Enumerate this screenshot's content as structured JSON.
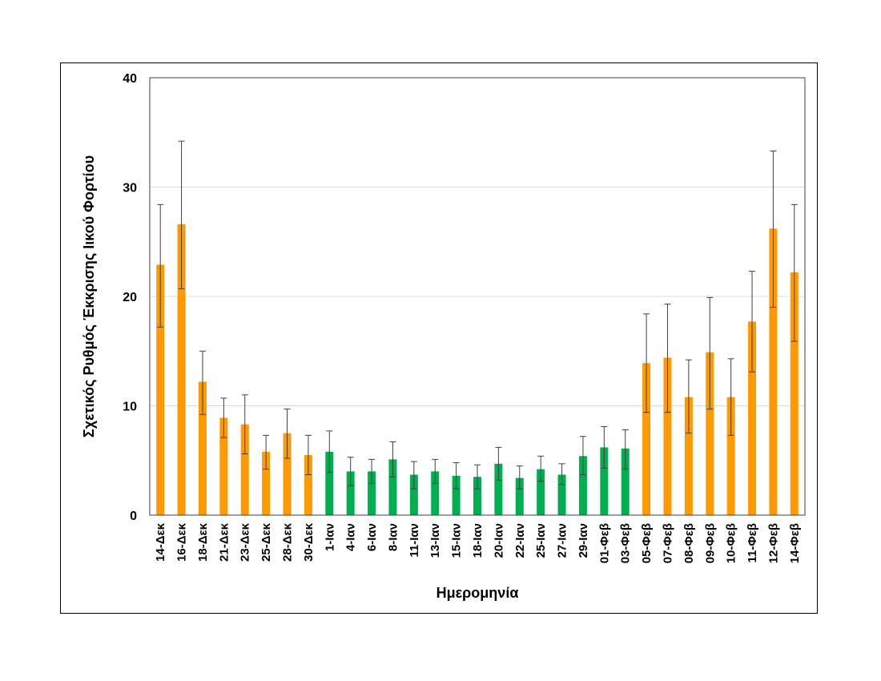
{
  "chart_data": {
    "type": "bar",
    "title": "",
    "xlabel": "Ημερομηνία",
    "ylabel": "Σχετικός Ρυθμός Έκκρισης Ιικού Φορτίου",
    "ylim": [
      0,
      40
    ],
    "yticks": [
      0,
      10,
      20,
      30,
      40
    ],
    "grid": true,
    "legend": "none",
    "colors": {
      "orange": "#FF9900",
      "green": "#00B050",
      "error": "#404040",
      "grid": "#d9d9d9"
    },
    "categories": [
      "14-Δεκ",
      "16-Δεκ",
      "18-Δεκ",
      "21-Δεκ",
      "23-Δεκ",
      "25-Δεκ",
      "28-Δεκ",
      "30-Δεκ",
      "1-Ιαν",
      "4-Ιαν",
      "6-Ιαν",
      "8-Ιαν",
      "11-Ιαν",
      "13-Ιαν",
      "15-Ιαν",
      "18-Ιαν",
      "20-Ιαν",
      "22-Ιαν",
      "25-Ιαν",
      "27-Ιαν",
      "29-Ιαν",
      "01-Φεβ",
      "03-Φεβ",
      "05-Φεβ",
      "07-Φεβ",
      "08-Φεβ",
      "09-Φεβ",
      "10-Φεβ",
      "11-Φεβ",
      "12-Φεβ",
      "14-Φεβ"
    ],
    "values": [
      22.9,
      26.6,
      12.2,
      8.9,
      8.3,
      5.8,
      7.5,
      5.5,
      5.8,
      4.0,
      4.0,
      5.1,
      3.7,
      4.0,
      3.6,
      3.5,
      4.7,
      3.4,
      4.2,
      3.7,
      5.4,
      6.2,
      6.1,
      13.9,
      14.4,
      10.8,
      14.9,
      10.8,
      17.7,
      26.2,
      22.2
    ],
    "error_upper": [
      28.4,
      34.2,
      15.0,
      10.7,
      11.0,
      7.3,
      9.7,
      7.3,
      7.7,
      5.3,
      5.1,
      6.7,
      4.9,
      5.1,
      4.8,
      4.6,
      6.2,
      4.5,
      5.4,
      4.7,
      7.2,
      8.1,
      7.8,
      18.4,
      19.3,
      14.2,
      19.9,
      14.3,
      22.3,
      33.3,
      28.4
    ],
    "error_lower": [
      17.2,
      20.7,
      9.2,
      7.1,
      5.6,
      4.2,
      5.2,
      3.7,
      3.9,
      2.7,
      2.9,
      3.5,
      2.4,
      2.9,
      2.4,
      2.4,
      3.2,
      2.4,
      3.1,
      2.8,
      3.7,
      4.3,
      4.2,
      9.4,
      9.4,
      7.5,
      9.7,
      7.3,
      13.1,
      19.0,
      15.9
    ],
    "bar_colors": [
      "orange",
      "orange",
      "orange",
      "orange",
      "orange",
      "orange",
      "orange",
      "orange",
      "green",
      "green",
      "green",
      "green",
      "green",
      "green",
      "green",
      "green",
      "green",
      "green",
      "green",
      "green",
      "green",
      "green",
      "green",
      "orange",
      "orange",
      "orange",
      "orange",
      "orange",
      "orange",
      "orange",
      "orange"
    ]
  }
}
